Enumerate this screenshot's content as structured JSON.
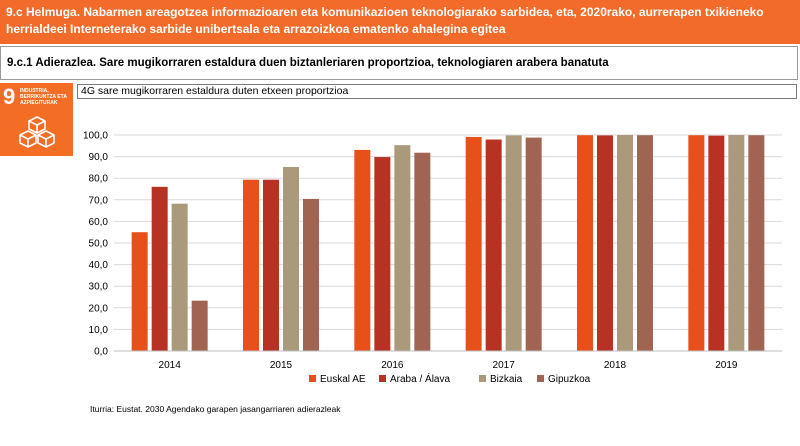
{
  "goal": {
    "title": "9.c Helmuga. Nabarmen areagotzea informazioaren eta komunikazioen teknologiarako sarbidea, eta, 2020rako, aurrerapen txikieneko herrialdeei Interneterako sarbide unibertsala eta arrazoizkoa ematenko ahalegina egitea"
  },
  "indicator": {
    "title": "9.c.1 Adierazlea. Sare mugikorraren estaldura duen biztanleriaren proportzioa, teknologiaren arabera banatuta"
  },
  "sdg": {
    "number": "9",
    "name": "INDUSTRIA, BERRIKUNTZA ETA AZPIEGITURAK",
    "icon": "cube-icon",
    "color": "#f36d25"
  },
  "chart_data": {
    "type": "bar",
    "title": "4G sare mugikorraren estaldura duten etxeen proportzioa",
    "categories": [
      "2014",
      "2015",
      "2016",
      "2017",
      "2018",
      "2019"
    ],
    "series": [
      {
        "name": "Euskal AE",
        "color": "#e8501b",
        "values": [
          55.0,
          79.3,
          93.1,
          99.1,
          99.9,
          99.9
        ]
      },
      {
        "name": "Araba / Álava",
        "color": "#b83223",
        "values": [
          76.0,
          79.3,
          89.8,
          97.9,
          99.8,
          99.7
        ]
      },
      {
        "name": "Bizkaia",
        "color": "#aa997a",
        "values": [
          68.2,
          85.2,
          95.3,
          99.8,
          100.0,
          100.0
        ]
      },
      {
        "name": "Gipuzkoa",
        "color": "#a26452",
        "values": [
          23.3,
          70.4,
          91.8,
          98.8,
          99.9,
          99.9
        ]
      }
    ],
    "ylim": [
      0,
      100
    ],
    "yticks": [
      0,
      10,
      20,
      30,
      40,
      50,
      60,
      70,
      80,
      90,
      100
    ],
    "ytick_labels": [
      "0,0",
      "10,0",
      "20,0",
      "30,0",
      "40,0",
      "50,0",
      "60,0",
      "70,0",
      "80,0",
      "90,0",
      "100,0"
    ],
    "xlabel": "",
    "ylabel": "",
    "grid": true,
    "legend_position": "bottom"
  },
  "source": "Iturria: Eustat. 2030 Agendako garapen jasangarriaren adierazleak"
}
